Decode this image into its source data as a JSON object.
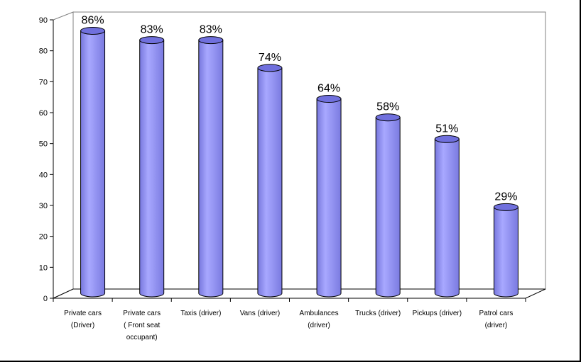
{
  "chart_data": {
    "type": "bar",
    "style": "3d-cylinder",
    "categories": [
      "Private cars (Driver)",
      "Private cars ( Front seat occupant)",
      "Taxis (driver)",
      "Vans (driver)",
      "Ambulances (driver)",
      "Trucks (driver)",
      "Pickups (driver)",
      "Patrol cars (driver)"
    ],
    "category_lines": [
      [
        "Private cars",
        "(Driver)"
      ],
      [
        "Private cars",
        "( Front seat",
        "occupant)"
      ],
      [
        "Taxis (driver)"
      ],
      [
        "Vans (driver)"
      ],
      [
        "Ambulances",
        "(driver)"
      ],
      [
        "Trucks (driver)"
      ],
      [
        "Pickups (driver)"
      ],
      [
        "Patrol cars",
        "(driver)"
      ]
    ],
    "values": [
      86,
      83,
      83,
      74,
      64,
      58,
      51,
      29
    ],
    "data_labels": [
      "86%",
      "83%",
      "83%",
      "74%",
      "64%",
      "58%",
      "51%",
      "29%"
    ],
    "ylim": [
      0,
      90
    ],
    "yticks": [
      0,
      10,
      20,
      30,
      40,
      50,
      60,
      70,
      80,
      90
    ],
    "grid": false,
    "legend": "none",
    "colors": {
      "bar_fill": "#9999ff",
      "bar_dark": "#6666cc",
      "bar_top": "#7070dd",
      "outline": "#000000"
    }
  }
}
